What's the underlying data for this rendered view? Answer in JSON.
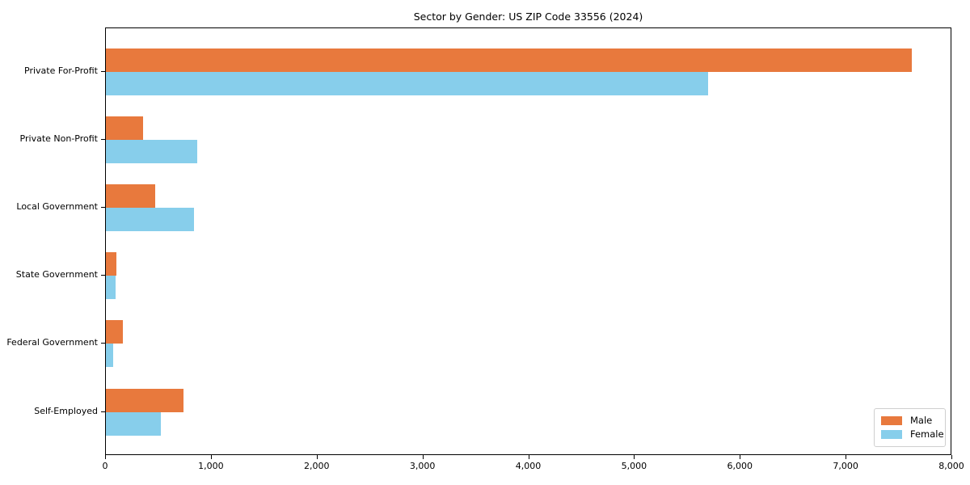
{
  "title": "Sector by Gender: US ZIP Code 33556 (2024)",
  "chart_data": {
    "type": "bar",
    "orientation": "horizontal",
    "title": "Sector by Gender: US ZIP Code 33556 (2024)",
    "xlabel": "",
    "ylabel": "",
    "categories": [
      "Private For-Profit",
      "Private Non-Profit",
      "Local Government",
      "State Government",
      "Federal Government",
      "Self-Employed"
    ],
    "series": [
      {
        "name": "Male",
        "color": "#E8793D",
        "values": [
          7620,
          350,
          465,
          100,
          160,
          735
        ]
      },
      {
        "name": "Female",
        "color": "#87CEEB",
        "values": [
          5690,
          865,
          835,
          90,
          70,
          520
        ]
      }
    ],
    "xlim": [
      0,
      8000
    ],
    "xticks": [
      0,
      1000,
      2000,
      3000,
      4000,
      5000,
      6000,
      7000,
      8000
    ],
    "xtick_labels": [
      "0",
      "1,000",
      "2,000",
      "3,000",
      "4,000",
      "5,000",
      "6,000",
      "7,000",
      "8,000"
    ],
    "grid": false,
    "legend_position": "lower right"
  }
}
